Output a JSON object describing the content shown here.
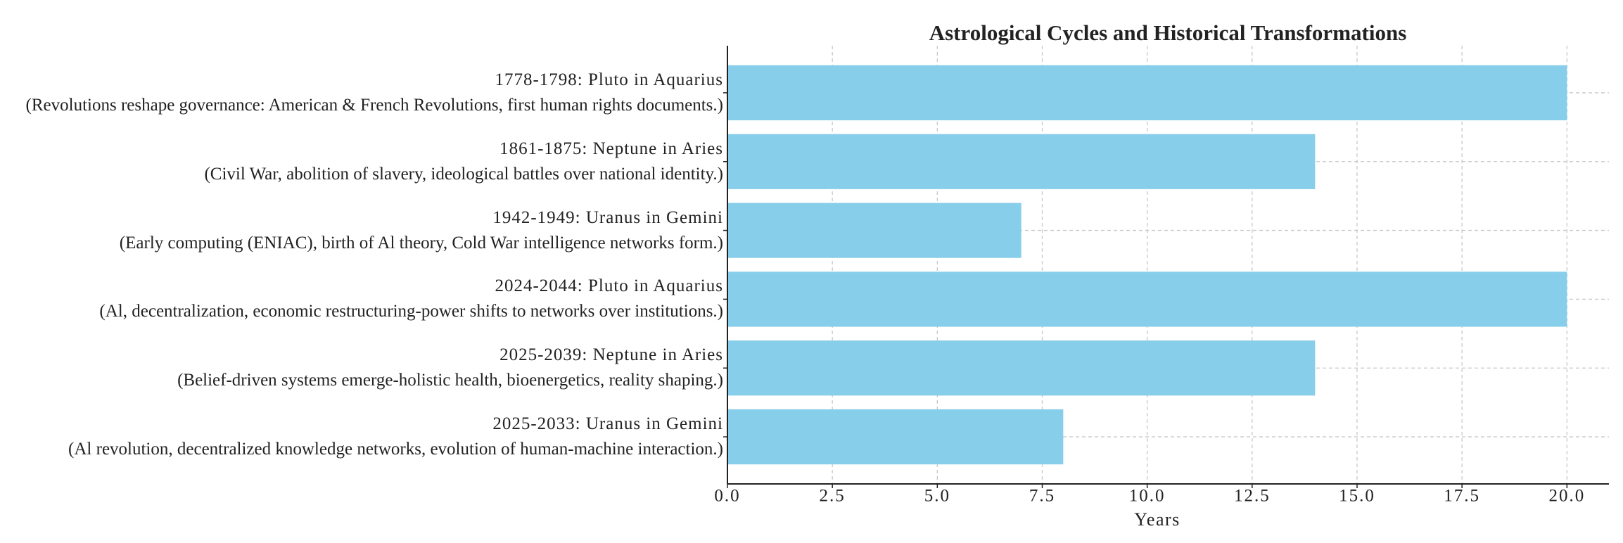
{
  "chart_data": {
    "type": "barh",
    "title": "Astrological Cycles and Historical Transformations",
    "categories": [
      "1778-1798: Pluto in Aquarius",
      "1861-1875: Neptune in Aries",
      "1942-1949: Uranus in Gemini",
      "2024-2044: Pluto in Aquarius",
      "2025-2039: Neptune in Aries",
      "2025-2033: Uranus in Gemini"
    ],
    "category_notes": [
      "(Revolutions reshape governance: American & French Revolutions, first human rights documents.)",
      "(Civil War, abolition of slavery, ideological battles over national identity.)",
      "(Early computing (ENIAC), birth of Al theory, Cold War intelligence networks form.)",
      "(Al, decentralization, economic restructuring-power shifts to networks over institutions.)",
      "(Belief-driven systems emerge-holistic health, bioenergetics, reality shaping.)",
      "(Al revolution, decentralized knowledge networks, evolution of human-machine interaction.)"
    ],
    "values": [
      20,
      14,
      7,
      20,
      14,
      8
    ],
    "color": "#87ceeb",
    "xlabel": "Years",
    "xlim": [
      0,
      21
    ],
    "xticks": [
      {
        "value": 0,
        "label": "0.0"
      },
      2.5,
      {
        "value": 5,
        "label": "5.0"
      },
      7.5,
      {
        "value": 10,
        "label": "10.0"
      },
      12.5,
      {
        "value": 15,
        "label": "15.0"
      },
      17.5,
      {
        "value": 20,
        "label": "20.0"
      }
    ],
    "grid": true
  }
}
